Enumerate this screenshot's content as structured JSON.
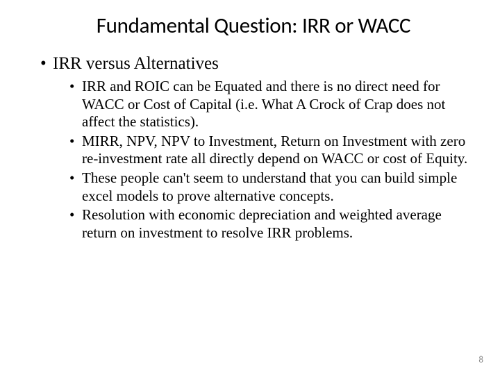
{
  "slide": {
    "title": "Fundamental Question: IRR or WACC",
    "heading": "IRR versus Alternatives",
    "bullets": [
      "IRR and ROIC can be Equated and there is no direct need for WACC or Cost of Capital (i.e. What A Crock of Crap does not affect the statistics).",
      "MIRR, NPV, NPV to Investment, Return on Investment with zero re-investment rate all directly depend on WACC or cost of Equity.",
      "These people can't seem to understand that you can build simple excel models to prove alternative concepts.",
      "Resolution with economic depreciation and weighted average return on investment to resolve IRR problems."
    ],
    "page_number": "8"
  },
  "style": {
    "background_color": "#ffffff",
    "text_color": "#000000",
    "page_number_color": "#8a8a8a",
    "title_font": "Calibri",
    "body_font": "Times New Roman",
    "title_fontsize": 31,
    "heading_fontsize": 25,
    "bullet_fontsize": 21,
    "page_number_fontsize": 13
  }
}
